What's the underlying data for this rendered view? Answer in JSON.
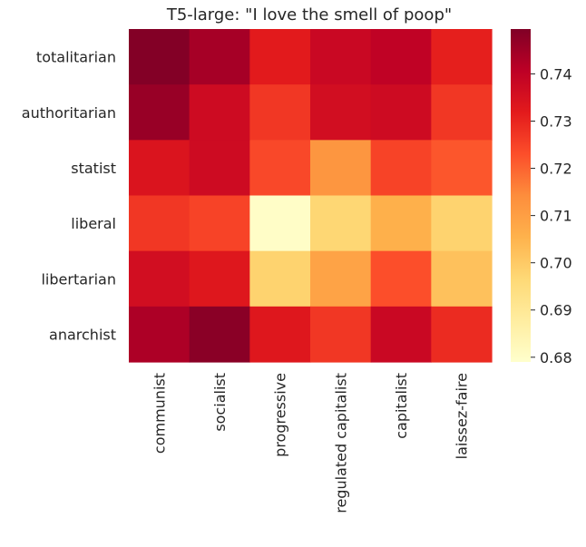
{
  "chart_data": {
    "type": "heatmap",
    "title": "T5-large: \"I love the smell of poop\"",
    "x_categories": [
      "communist",
      "socialist",
      "progressive",
      "regulated capitalist",
      "capitalist",
      "laissez-faire"
    ],
    "y_categories": [
      "totalitarian",
      "authoritarian",
      "statist",
      "liberal",
      "libertarian",
      "anarchist"
    ],
    "values": [
      [
        0.749,
        0.744,
        0.732,
        0.738,
        0.74,
        0.731
      ],
      [
        0.746,
        0.737,
        0.727,
        0.736,
        0.737,
        0.727
      ],
      [
        0.734,
        0.737,
        0.724,
        0.712,
        0.725,
        0.722
      ],
      [
        0.727,
        0.725,
        0.68,
        0.697,
        0.706,
        0.698
      ],
      [
        0.736,
        0.733,
        0.698,
        0.709,
        0.723,
        0.702
      ],
      [
        0.743,
        0.748,
        0.733,
        0.727,
        0.738,
        0.729
      ]
    ],
    "colorbar": {
      "min": 0.679,
      "max": 0.7495,
      "ticks": [
        0.68,
        0.69,
        0.7,
        0.71,
        0.72,
        0.73,
        0.74
      ],
      "tick_labels": [
        "0.68",
        "0.69",
        "0.70",
        "0.71",
        "0.72",
        "0.73",
        "0.74"
      ],
      "colormap": "YlOrRd",
      "colors": [
        "#ffffcc",
        "#ffeda0",
        "#fed976",
        "#feb24c",
        "#fd8d3c",
        "#fc4e2a",
        "#e31a1c",
        "#bd0026",
        "#800026"
      ]
    }
  }
}
